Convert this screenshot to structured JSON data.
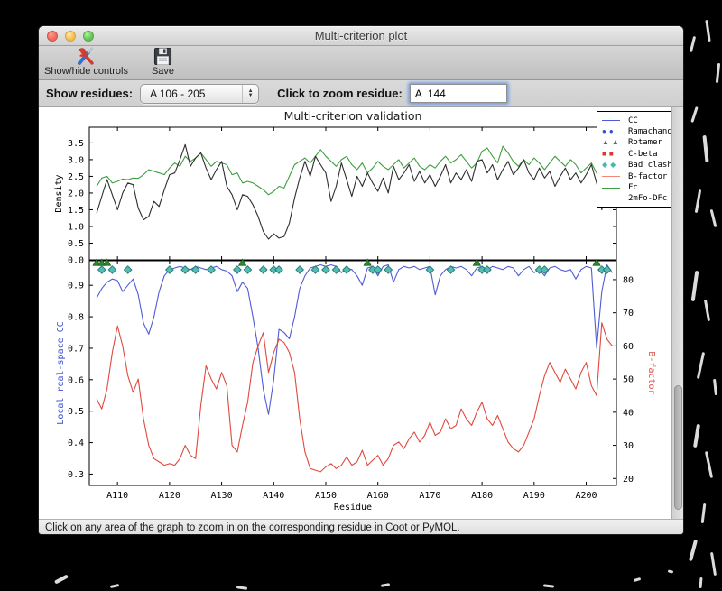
{
  "window": {
    "title": "Multi-criterion plot",
    "toolbar": {
      "show_hide_label": "Show/hide controls",
      "save_label": "Save"
    },
    "controls": {
      "show_residues_label": "Show residues:",
      "residue_range_value": "A 106 - 205",
      "zoom_residue_label": "Click to zoom residue:",
      "zoom_residue_value": "A  144"
    },
    "status_bar": "Click on any area of the graph to zoom in on the corresponding residue in Coot or PyMOL."
  },
  "plot": {
    "title": "Multi-criterion validation",
    "legend": [
      {
        "label": "CC",
        "type": "line",
        "color": "#4f5bd5"
      },
      {
        "label": "Ramachandran",
        "type": "circle",
        "color": "#2a4fd0"
      },
      {
        "label": "Rotamer",
        "type": "triangle",
        "color": "#2e8b2e"
      },
      {
        "label": "C-beta",
        "type": "square",
        "color": "#d93a30"
      },
      {
        "label": "Bad clash",
        "type": "diamond",
        "color": "#45b8b0"
      },
      {
        "label": "B-factor",
        "type": "line",
        "color": "#f0897b"
      },
      {
        "label": "Fc",
        "type": "line",
        "color": "#3f9e3f"
      },
      {
        "label": "2mFo-DFc",
        "type": "line",
        "color": "#333333"
      }
    ]
  },
  "chart_data": [
    {
      "type": "line",
      "title": "Multi-criterion validation",
      "ylabel": "Density",
      "x_start": 106,
      "xlim": [
        104.6,
        205.8
      ],
      "ylim": [
        0,
        3.97
      ],
      "yticks": [
        "0.0",
        "0.5",
        "1.0",
        "1.5",
        "2.0",
        "2.5",
        "3.0",
        "3.5"
      ],
      "xticks": [
        {
          "label": "A110",
          "residue": 110
        },
        {
          "label": "A120",
          "residue": 120
        },
        {
          "label": "A130",
          "residue": 130
        },
        {
          "label": "A140",
          "residue": 140
        },
        {
          "label": "A150",
          "residue": 150
        },
        {
          "label": "A160",
          "residue": 160
        },
        {
          "label": "A170",
          "residue": 170
        },
        {
          "label": "A180",
          "residue": 180
        },
        {
          "label": "A190",
          "residue": 190
        },
        {
          "label": "A200",
          "residue": 200
        }
      ],
      "series": [
        {
          "name": "Fc",
          "color": "#3f9e3f",
          "values": [
            2.2,
            2.45,
            2.5,
            2.3,
            2.35,
            2.42,
            2.4,
            2.45,
            2.44,
            2.55,
            2.7,
            2.65,
            2.6,
            2.55,
            2.75,
            2.9,
            2.8,
            3.1,
            2.95,
            3.05,
            3.2,
            3.0,
            2.8,
            2.95,
            2.9,
            2.85,
            2.55,
            2.6,
            2.3,
            2.35,
            2.3,
            2.2,
            2.1,
            1.95,
            2.05,
            2.2,
            2.15,
            2.5,
            2.85,
            2.95,
            3.05,
            2.9,
            3.1,
            3.3,
            3.1,
            2.95,
            2.8,
            3.0,
            3.1,
            2.85,
            2.7,
            2.9,
            2.6,
            2.75,
            2.95,
            2.8,
            2.7,
            2.85,
            3.0,
            2.75,
            2.9,
            3.05,
            2.8,
            2.7,
            2.85,
            2.75,
            2.95,
            3.1,
            2.9,
            3.0,
            3.15,
            2.95,
            2.75,
            2.9,
            3.25,
            3.35,
            3.1,
            2.9,
            3.4,
            3.2,
            2.95,
            2.8,
            3.0,
            2.85,
            3.05,
            2.9,
            2.7,
            2.9,
            3.1,
            2.95,
            2.8,
            3.0,
            2.85,
            2.6,
            2.75,
            2.9,
            2.6,
            2.1,
            2.45,
            2.55
          ]
        },
        {
          "name": "2mFo-DFc",
          "color": "#2e2e2e",
          "values": [
            1.4,
            1.9,
            2.4,
            1.95,
            1.5,
            2.0,
            2.3,
            2.25,
            1.55,
            1.2,
            1.3,
            1.75,
            1.6,
            2.1,
            2.55,
            2.6,
            3.0,
            3.45,
            2.8,
            3.05,
            3.2,
            2.75,
            2.4,
            2.7,
            2.95,
            2.2,
            1.95,
            1.5,
            1.95,
            1.9,
            1.65,
            1.3,
            0.85,
            0.62,
            0.78,
            0.65,
            0.7,
            1.1,
            1.85,
            2.45,
            2.95,
            2.5,
            3.1,
            2.85,
            2.6,
            1.75,
            2.2,
            2.9,
            2.4,
            1.9,
            2.5,
            2.2,
            2.6,
            2.3,
            2.05,
            2.45,
            2.0,
            2.8,
            2.4,
            2.6,
            2.85,
            2.35,
            2.65,
            2.3,
            2.55,
            2.2,
            2.5,
            2.85,
            2.3,
            2.6,
            2.4,
            2.7,
            2.35,
            2.95,
            3.0,
            2.6,
            2.85,
            2.4,
            2.7,
            2.95,
            2.55,
            2.75,
            3.0,
            2.6,
            2.4,
            2.75,
            2.45,
            2.65,
            2.2,
            2.5,
            2.75,
            2.4,
            2.6,
            2.3,
            2.55,
            2.85,
            2.3,
            1.5,
            2.35,
            1.55
          ]
        }
      ]
    },
    {
      "type": "line+markers",
      "xlabel": "Residue",
      "x_start": 106,
      "xlim": [
        104.6,
        205.8
      ],
      "left": {
        "label": "Local real-space CC",
        "color": "#3c4ec9",
        "ylim": [
          0.264,
          0.978
        ],
        "yticks": [
          "0.3",
          "0.4",
          "0.5",
          "0.6",
          "0.7",
          "0.8",
          "0.9"
        ]
      },
      "right": {
        "label": "B-factor",
        "color": "#e0493e",
        "ylim": [
          17.9,
          85.7
        ],
        "yticks": [
          "20",
          "30",
          "40",
          "50",
          "60",
          "70",
          "80"
        ]
      },
      "xticks": [
        {
          "label": "A110",
          "residue": 110
        },
        {
          "label": "A120",
          "residue": 120
        },
        {
          "label": "A130",
          "residue": 130
        },
        {
          "label": "A140",
          "residue": 140
        },
        {
          "label": "A150",
          "residue": 150
        },
        {
          "label": "A160",
          "residue": 160
        },
        {
          "label": "A170",
          "residue": 170
        },
        {
          "label": "A180",
          "residue": 180
        },
        {
          "label": "A190",
          "residue": 190
        },
        {
          "label": "A200",
          "residue": 200
        }
      ],
      "series": [
        {
          "name": "CC",
          "axis": "left",
          "color": "#4f5bd5",
          "values": [
            0.86,
            0.89,
            0.91,
            0.92,
            0.915,
            0.88,
            0.9,
            0.92,
            0.87,
            0.78,
            0.745,
            0.8,
            0.88,
            0.93,
            0.95,
            0.955,
            0.96,
            0.955,
            0.95,
            0.96,
            0.955,
            0.95,
            0.955,
            0.96,
            0.95,
            0.945,
            0.93,
            0.88,
            0.91,
            0.89,
            0.8,
            0.7,
            0.57,
            0.49,
            0.6,
            0.76,
            0.75,
            0.73,
            0.8,
            0.89,
            0.93,
            0.955,
            0.96,
            0.965,
            0.96,
            0.965,
            0.96,
            0.94,
            0.955,
            0.95,
            0.93,
            0.9,
            0.955,
            0.96,
            0.93,
            0.96,
            0.965,
            0.91,
            0.95,
            0.96,
            0.955,
            0.96,
            0.95,
            0.955,
            0.96,
            0.87,
            0.93,
            0.95,
            0.96,
            0.955,
            0.96,
            0.95,
            0.93,
            0.955,
            0.96,
            0.95,
            0.96,
            0.955,
            0.95,
            0.96,
            0.955,
            0.93,
            0.95,
            0.96,
            0.94,
            0.95,
            0.93,
            0.955,
            0.96,
            0.95,
            0.945,
            0.95,
            0.92,
            0.95,
            0.96,
            0.955,
            0.7,
            0.88,
            0.965,
            0.94
          ]
        },
        {
          "name": "B-factor",
          "axis": "right",
          "color": "#e0493e",
          "values": [
            44,
            41,
            47,
            58,
            66,
            60,
            51,
            46,
            50,
            38,
            30,
            26,
            25,
            24,
            24.5,
            24,
            26,
            30,
            27,
            26,
            42,
            54,
            50,
            47,
            52,
            48,
            30,
            28,
            36,
            43,
            55,
            60,
            64,
            52,
            58,
            62,
            61,
            58,
            52,
            38,
            28,
            23,
            22.5,
            22,
            23.5,
            24.5,
            23,
            24,
            26.5,
            24,
            25,
            28.5,
            24,
            25.5,
            27,
            24,
            26,
            30,
            31,
            29,
            32,
            34,
            31,
            33,
            37,
            33,
            34,
            38,
            35,
            36,
            41,
            38,
            36,
            40,
            43,
            38,
            36,
            39,
            35,
            31,
            29,
            28,
            30,
            34,
            38,
            45,
            51,
            55,
            52,
            49,
            53,
            50,
            47,
            52,
            55,
            48,
            45,
            67,
            62,
            60
          ]
        }
      ],
      "markers": [
        {
          "name": "Rotamer",
          "shape": "triangle",
          "fill": "#2e8b2e",
          "stroke": "#1c5c1c",
          "residues": [
            106,
            107,
            108,
            134,
            158,
            179,
            202
          ]
        },
        {
          "name": "Bad clash",
          "shape": "diamond",
          "fill": "#52bdb5",
          "stroke": "#2a7d77",
          "residues": [
            107,
            109,
            112,
            120,
            123,
            125,
            128,
            133,
            135,
            138,
            140,
            141,
            145,
            148,
            150,
            152,
            154,
            159,
            160,
            162,
            170,
            174,
            180,
            181,
            191,
            192,
            203,
            204
          ]
        }
      ]
    }
  ]
}
